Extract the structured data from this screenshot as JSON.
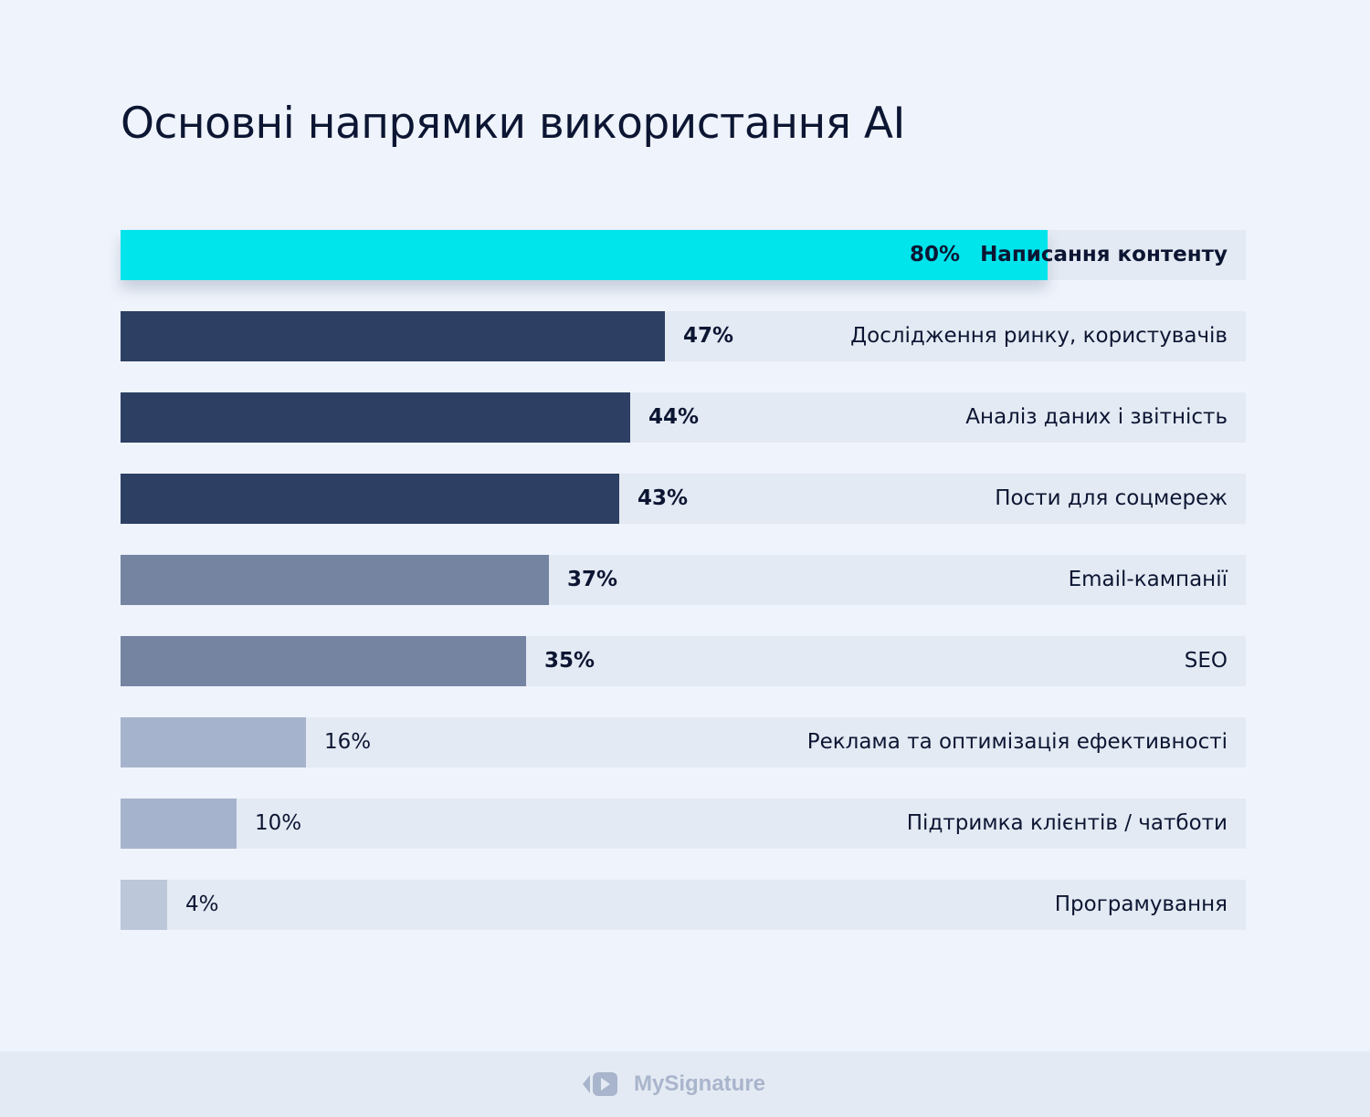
{
  "title": "Основні напрямки використання AI",
  "chart_data": {
    "type": "bar",
    "orientation": "horizontal",
    "title": "Основні напрямки використання AI",
    "xlim": [
      0,
      100
    ],
    "unit": "%",
    "categories": [
      "Написання контенту",
      "Дослідження ринку, користувачів",
      "Аналіз даних і звітність",
      "Пости для соцмереж",
      "Email-кампанії",
      "SEO",
      "Реклама та оптимізація ефективності",
      "Підтримка клієнтів / чатботи",
      "Програмування"
    ],
    "values": [
      80,
      47,
      44,
      43,
      37,
      35,
      16,
      10,
      4
    ],
    "value_labels": [
      "80%",
      "47%",
      "44%",
      "43%",
      "37%",
      "35%",
      "16%",
      "10%",
      "4%"
    ],
    "bar_colors": [
      "#00e4ec",
      "#2d3f63",
      "#2d3f63",
      "#2d3f63",
      "#7484a1",
      "#7484a1",
      "#a6b3cc",
      "#a6b3cc",
      "#bcc7da"
    ],
    "track_color": "#e4eaf3"
  },
  "footer": {
    "brand": "MySignature",
    "logo_icon": "mysignature-logo-icon"
  }
}
